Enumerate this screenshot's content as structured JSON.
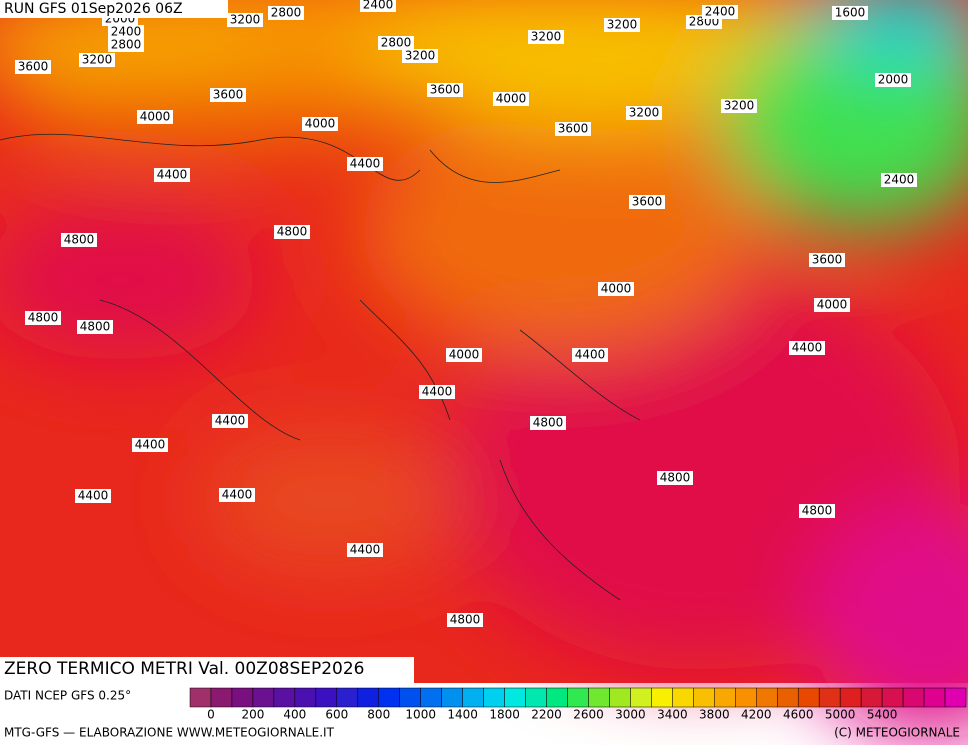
{
  "header": {
    "run": "RUN GFS 01Sep2026 06Z"
  },
  "title": "ZERO TERMICO METRI Val. 00Z08SEP2026",
  "source": "DATI NCEP GFS 0.25°",
  "footer_left": "MTG-GFS — ELABORAZIONE WWW.METEOGIORNALE.IT",
  "footer_right": "(C) METEOGIORNALE",
  "colorbar": {
    "colors": [
      "#a0306a",
      "#8a1a70",
      "#7a1080",
      "#6a1090",
      "#5a10a0",
      "#4a10b0",
      "#3a10c0",
      "#2a20d0",
      "#1020e0",
      "#0030f0",
      "#0050f0",
      "#0070f0",
      "#0090f0",
      "#00b0f0",
      "#00d0f0",
      "#00e8e0",
      "#00e8b0",
      "#00e880",
      "#30e850",
      "#70e830",
      "#a0e820",
      "#d0f020",
      "#f8f000",
      "#f8d800",
      "#f8c000",
      "#f8a800",
      "#f89000",
      "#f07800",
      "#e86000",
      "#e84800",
      "#e03018",
      "#e02020",
      "#d81838",
      "#d81050",
      "#d80870",
      "#e00090",
      "#e000b0"
    ],
    "labels": [
      0,
      200,
      400,
      600,
      800,
      1000,
      1400,
      1800,
      2200,
      2600,
      3000,
      3400,
      3800,
      4200,
      4600,
      5000,
      5400
    ]
  },
  "contour_labels": [
    "2000",
    "3200",
    "2400",
    "2800",
    "2400",
    "2800",
    "3200",
    "3600",
    "2800",
    "3200",
    "3200",
    "3200",
    "2800",
    "2400",
    "1600",
    "2000",
    "3600",
    "3600",
    "4000",
    "3200",
    "3200",
    "4000",
    "4000",
    "3600",
    "4400",
    "4400",
    "2400",
    "3600",
    "4800",
    "4800",
    "3600",
    "4000",
    "4000",
    "4800",
    "4800",
    "4400",
    "4000",
    "4400",
    "4400",
    "4400",
    "4800",
    "4400",
    "4800",
    "4400",
    "4400",
    "4800",
    "4400",
    "4800"
  ]
}
